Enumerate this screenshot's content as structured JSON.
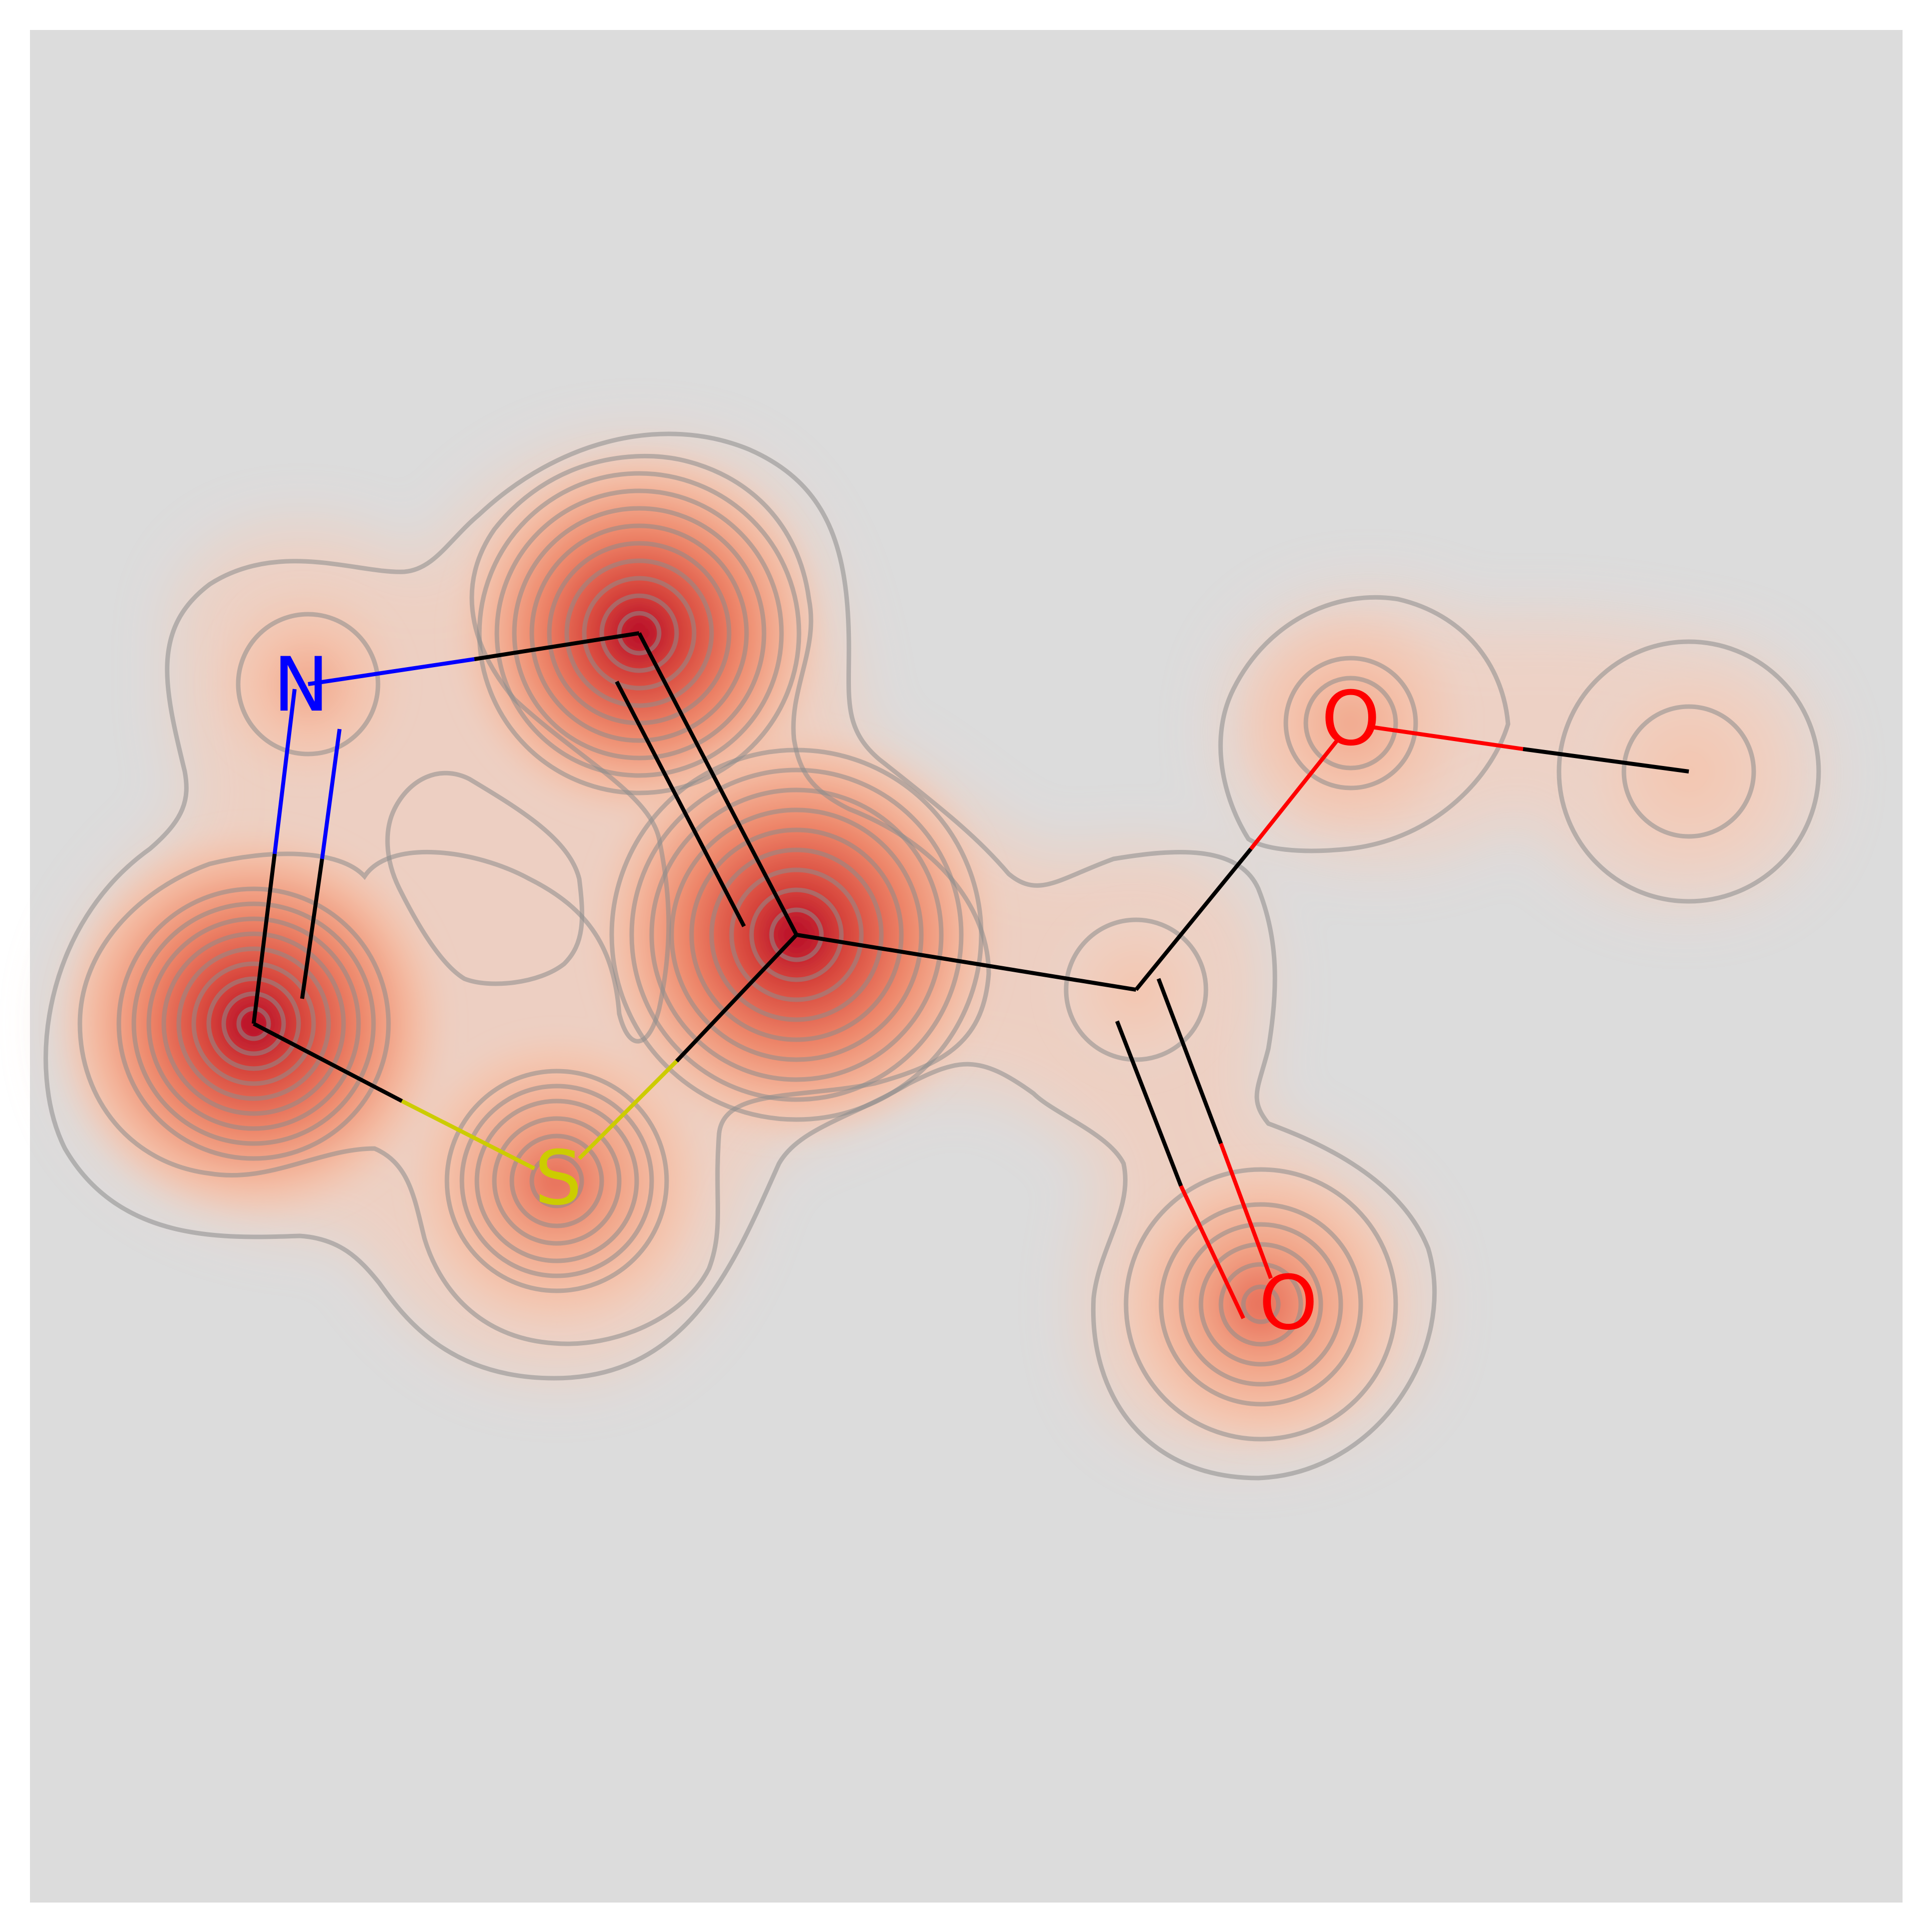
{
  "molecule": {
    "atoms": [
      {
        "id": "c_top",
        "element": "C",
        "label": "",
        "color": "#000000",
        "weight": 1.0
      },
      {
        "id": "n1",
        "element": "N",
        "label": "N",
        "color": "#0000ff",
        "weight": 0.45
      },
      {
        "id": "c_left",
        "element": "C",
        "label": "",
        "color": "#000000",
        "weight": 1.0
      },
      {
        "id": "s1",
        "element": "S",
        "label": "S",
        "color": "#cccc00",
        "weight": 0.75
      },
      {
        "id": "c_ring",
        "element": "C",
        "label": "",
        "color": "#000000",
        "weight": 1.0
      },
      {
        "id": "c_carbonyl",
        "element": "C",
        "label": "",
        "color": "#000000",
        "weight": 0.35
      },
      {
        "id": "o_ester",
        "element": "O",
        "label": "O",
        "color": "#ff0000",
        "weight": 0.35
      },
      {
        "id": "c_methyl",
        "element": "C",
        "label": "",
        "color": "#000000",
        "weight": 0.3
      },
      {
        "id": "o_carbonyl",
        "element": "O",
        "label": "O",
        "color": "#ff0000",
        "weight": 0.6
      }
    ],
    "bonds": [
      {
        "from": "n1",
        "to": "c_top",
        "order": 1
      },
      {
        "from": "c_top",
        "to": "c_ring",
        "order": 2
      },
      {
        "from": "n1",
        "to": "c_left",
        "order": 2
      },
      {
        "from": "c_left",
        "to": "s1",
        "order": 1
      },
      {
        "from": "s1",
        "to": "c_ring",
        "order": 1
      },
      {
        "from": "c_ring",
        "to": "c_carbonyl",
        "order": 1
      },
      {
        "from": "c_carbonyl",
        "to": "o_ester",
        "order": 1
      },
      {
        "from": "o_ester",
        "to": "c_methyl",
        "order": 1
      },
      {
        "from": "c_carbonyl",
        "to": "o_carbonyl",
        "order": 2
      }
    ]
  },
  "colors": {
    "background": "#dcdcdc",
    "heat_high": "#b40426",
    "heat_low": "#f4c6b0",
    "contour": "#8c8c8c",
    "bond": "#000000"
  }
}
